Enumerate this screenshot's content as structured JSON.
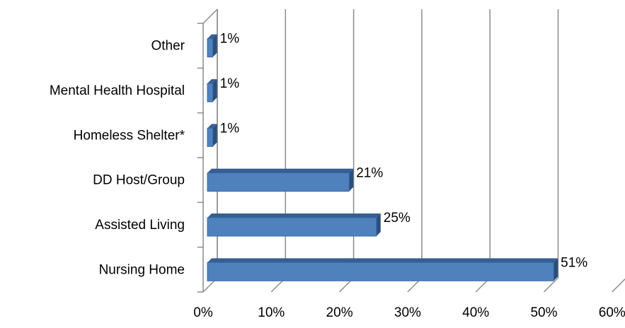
{
  "chart_data": {
    "type": "bar",
    "orientation": "horizontal",
    "categories": [
      "Nursing Home",
      "Assisted Living",
      "DD Host/Group",
      "Homeless Shelter*",
      "Mental Health Hospital",
      "Other"
    ],
    "values": [
      51,
      25,
      21,
      1,
      1,
      1
    ],
    "value_labels": [
      "51%",
      "25%",
      "21%",
      "1%",
      "1%",
      "1%"
    ],
    "x_ticks": [
      "0%",
      "10%",
      "20%",
      "30%",
      "40%",
      "50%",
      "60%"
    ],
    "xlim": [
      0,
      60
    ],
    "grid": true,
    "style": "3d",
    "bar_color": "#4f81bd",
    "title": "",
    "xlabel": "",
    "ylabel": ""
  }
}
